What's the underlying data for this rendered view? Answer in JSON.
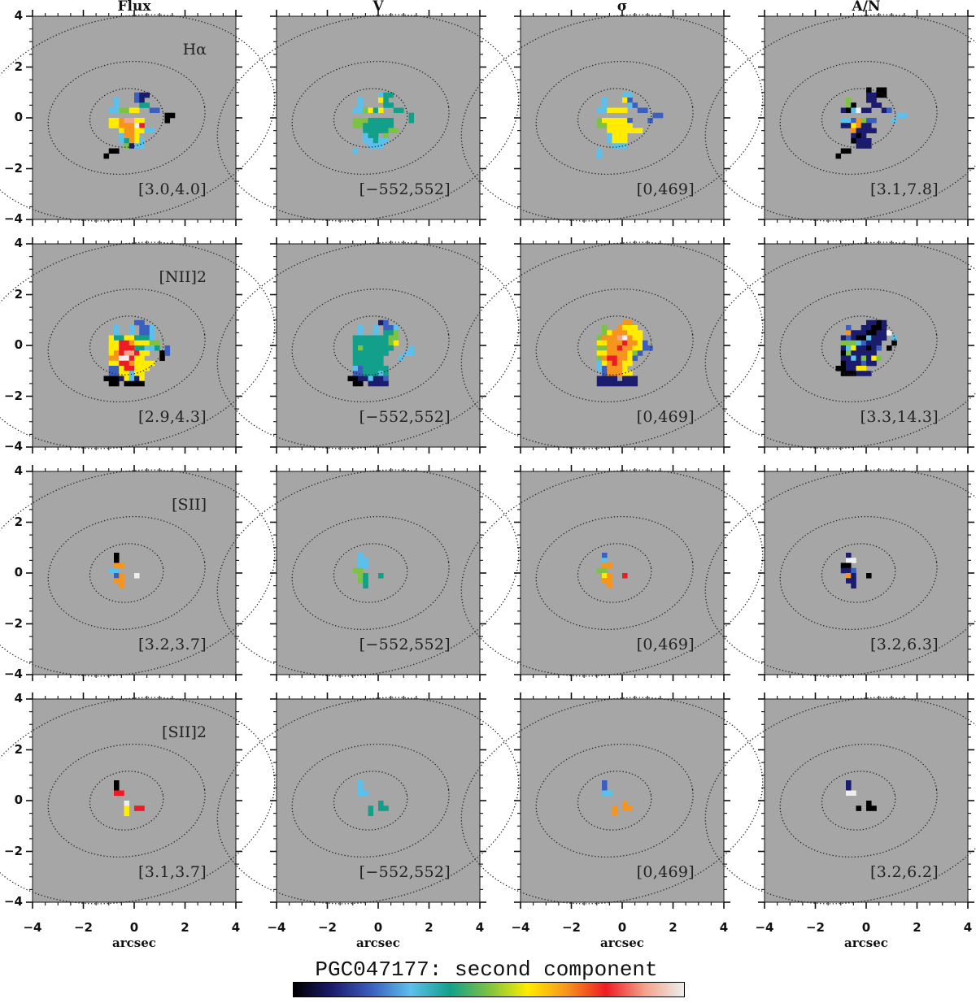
{
  "title": "PGC047177: second component",
  "chart_data": {
    "type": "heatmap",
    "xlabel": "arcsec",
    "xlim": [
      -4,
      4
    ],
    "ylim": [
      -4,
      4
    ],
    "xticks": [
      "−4",
      "−2",
      "0",
      "2",
      "4"
    ],
    "xtick_values": [
      -4,
      -2,
      0,
      2,
      4
    ],
    "yticks": [
      "4",
      "2",
      "0",
      "−2",
      "−4"
    ],
    "ytick_values": [
      4,
      2,
      0,
      -2,
      -4
    ],
    "columns": [
      "Flux",
      "V",
      "σ",
      "A/N"
    ],
    "rows": [
      {
        "line": "Hα",
        "ranges": [
          "[3.0,4.0]",
          "[−552,552]",
          "[0,469]",
          "[3.1,7.8]"
        ]
      },
      {
        "line": "[NII]2",
        "ranges": [
          "[2.9,4.3]",
          "[−552,552]",
          "[0,469]",
          "[3.3,14.3]"
        ]
      },
      {
        "line": "[SII]",
        "ranges": [
          "[3.2,3.7]",
          "[−552,552]",
          "[0,469]",
          "[3.2,6.3]"
        ]
      },
      {
        "line": "[SII]2",
        "ranges": [
          "[3.1,3.7]",
          "[−552,552]",
          "[0,469]",
          "[3.2,6.2]"
        ]
      }
    ],
    "grid": {
      "x0": -1.6,
      "y0": 1.4,
      "cell": 0.2
    },
    "colormap": {
      "k": "#000000",
      "n": "#1c1c6e",
      "b": "#3b5fbf",
      "c": "#5cc0ec",
      "t": "#12a08a",
      "g": "#7dc242",
      "y": "#ffec00",
      "o": "#f7941d",
      "r": "#ed1c24",
      "p": "#f2a38a",
      "w": "#eeeeee"
    },
    "contours": [
      {
        "cx": -0.3,
        "cy": 0,
        "rx": 1.45,
        "ry": 1.15,
        "angle": 8
      },
      {
        "cx": -0.3,
        "cy": 0,
        "rx": 3.1,
        "ry": 2.2,
        "angle": 8
      },
      {
        "cx": -0.4,
        "cy": 0,
        "rx": 6.0,
        "ry": 3.95,
        "angle": 12
      }
    ],
    "maps": [
      [
        [
          "",
          "",
          "........bnn.....",
          "....c...bn......",
          "....c....tt.....",
          "...ccggyy..bb...",
          "..............kk",
          "...yyoppyy....k.",
          "...yyooowr......",
          ".....yooyycc....",
          ".....cooy.......",
          ".....ctoyc......",
          "......gncc......",
          "...kk...........",
          "..k............."
        ],
        [
          "",
          "",
          "........ctt.....",
          "....c...yt......",
          "....c....tt.....",
          "...ccgyty..tt...",
          "..............t.",
          "...gggttttt...t.",
          "...ggtttttt.....",
          ".....tttttgg....",
          ".....ctt.g......",
          ".....cctcc......",
          "......ccc.......",
          "...c............",
          ""
        ],
        [
          "",
          "",
          "........cc......",
          "....c...yb......",
          "....c....cb.....",
          "...ccyyyy..bb...",
          "..............bb",
          "...gyyyyyb...b..",
          "...ggyyyyy......",
          ".....yyyyyyy....",
          ".....cyyy.......",
          ".....cyyy.......",
          "......ccc.......",
          "...c............",
          "...c............"
        ],
        [
          "",
          "........k.kk....",
          "........nnkk....",
          "....g...nn......",
          "....gk...nn.....",
          "...nkcwnn..nb...",
          "..............cc",
          "...ccbogbb...c..",
          "...nnyonn.......",
          ".....onnnn......",
          ".....nkn........",
          ".....knnn.......",
          "......nnn.......",
          "...kk...........",
          "..k............."
        ]
      ],
      [
        [
          "",
          "",
          "........bb......",
          "....c..c.bbc....",
          "....c..c.bbc....",
          "...yttyytttc....",
          "...yyrroyyygg...",
          "...yyrrrttcct.b.",
          "...yorppryy..kb.",
          "...oowwryy...k..",
          "...yyrroyyyy....",
          "...bbyrryyy.....",
          "...bbyycyy......",
          "..kkknycny......",
          "...kk.kkkk......"
        ],
        [
          "",
          "",
          "........nb......",
          "....c..c.bbc....",
          "....c..c.ttg....",
          "...tttttttgg....",
          "...tttttttgy....",
          "...tgtttttt...c.",
          "...ttttttt...cc.",
          "...tttttt...c...",
          "...tttttt.......",
          "...cbttttt......",
          "...bbtttct......",
          "..kknncnnb......",
          "...kk.nnnn......"
        ],
        [
          "",
          "",
          "........oo......",
          "....g..oyyy.....",
          "....gyoooyyy....",
          "...gooopwoyy....",
          "...yyooorooyb...",
          "...ggoorooyybb..",
          "...yyooooygb....",
          "...gorrooyb.....",
          "...cyoroyy......",
          "...cboooy.......",
          "....boooyy......",
          "...nnnn.nnn.....",
          "...nnnnnnnn....."
        ],
        [
          "",
          "",
          "........nnkn....",
          "....b..nnkkn....",
          "....onnnkknnw...",
          "...nbnkkcnnn.c..",
          "...gggcbnnn..k..",
          "...ncynnknb.k...",
          "...kgnnnnn......",
          "...nncngnyg.....",
          "...knnnbnn......",
          "..kknnyy........",
          "...kkknnn.......",
          "",
          ""
        ]
      ],
      [
        [
          "",
          "",
          "",
          "....k...........",
          "....k...........",
          "....oo..........",
          "...cc...........",
          "....bo..w.......",
          "....oo..........",
          ".....o..........",
          "",
          "",
          "",
          "",
          ""
        ],
        [
          "",
          "",
          "",
          "....c...........",
          "....cc..........",
          "....cc..........",
          "...gg...........",
          "....gt..t.......",
          "....gt..........",
          ".....t..........",
          "",
          "",
          "",
          "",
          ""
        ],
        [
          "",
          "",
          "",
          "....b...........",
          "....c...........",
          "....oo..........",
          "...gg...........",
          "....yo..r.......",
          "....oo..........",
          ".....o..........",
          "",
          "",
          "",
          "",
          ""
        ],
        [
          "",
          "",
          "",
          "....n...........",
          "....ww..........",
          "...kk...........",
          "...nnb..........",
          "....on..k.......",
          "....nn..........",
          ".....n..........",
          "",
          "",
          "",
          "",
          ""
        ]
      ],
      [
        [
          "",
          "",
          "",
          "....k...........",
          "....k...........",
          "....rr..........",
          "",
          "......w.........",
          "......y.rr......",
          "......y.........",
          "",
          "",
          "",
          "",
          ""
        ],
        [
          "",
          "",
          "",
          "....c...........",
          "....c...........",
          "....cc..........",
          "",
          "........t.......",
          "......t.tt......",
          "......t.........",
          "",
          "",
          "",
          "",
          ""
        ],
        [
          "",
          "",
          "",
          "....b...........",
          "....b...........",
          "....cc..........",
          "",
          "........o.......",
          "......o.oo......",
          "......o.........",
          "",
          "",
          "",
          "",
          ""
        ],
        [
          "",
          "",
          "",
          "....n...........",
          "....n...........",
          "....ww..........",
          "",
          "........k.......",
          "......k.kk......",
          "................",
          "",
          "",
          "",
          "",
          ""
        ]
      ]
    ]
  }
}
